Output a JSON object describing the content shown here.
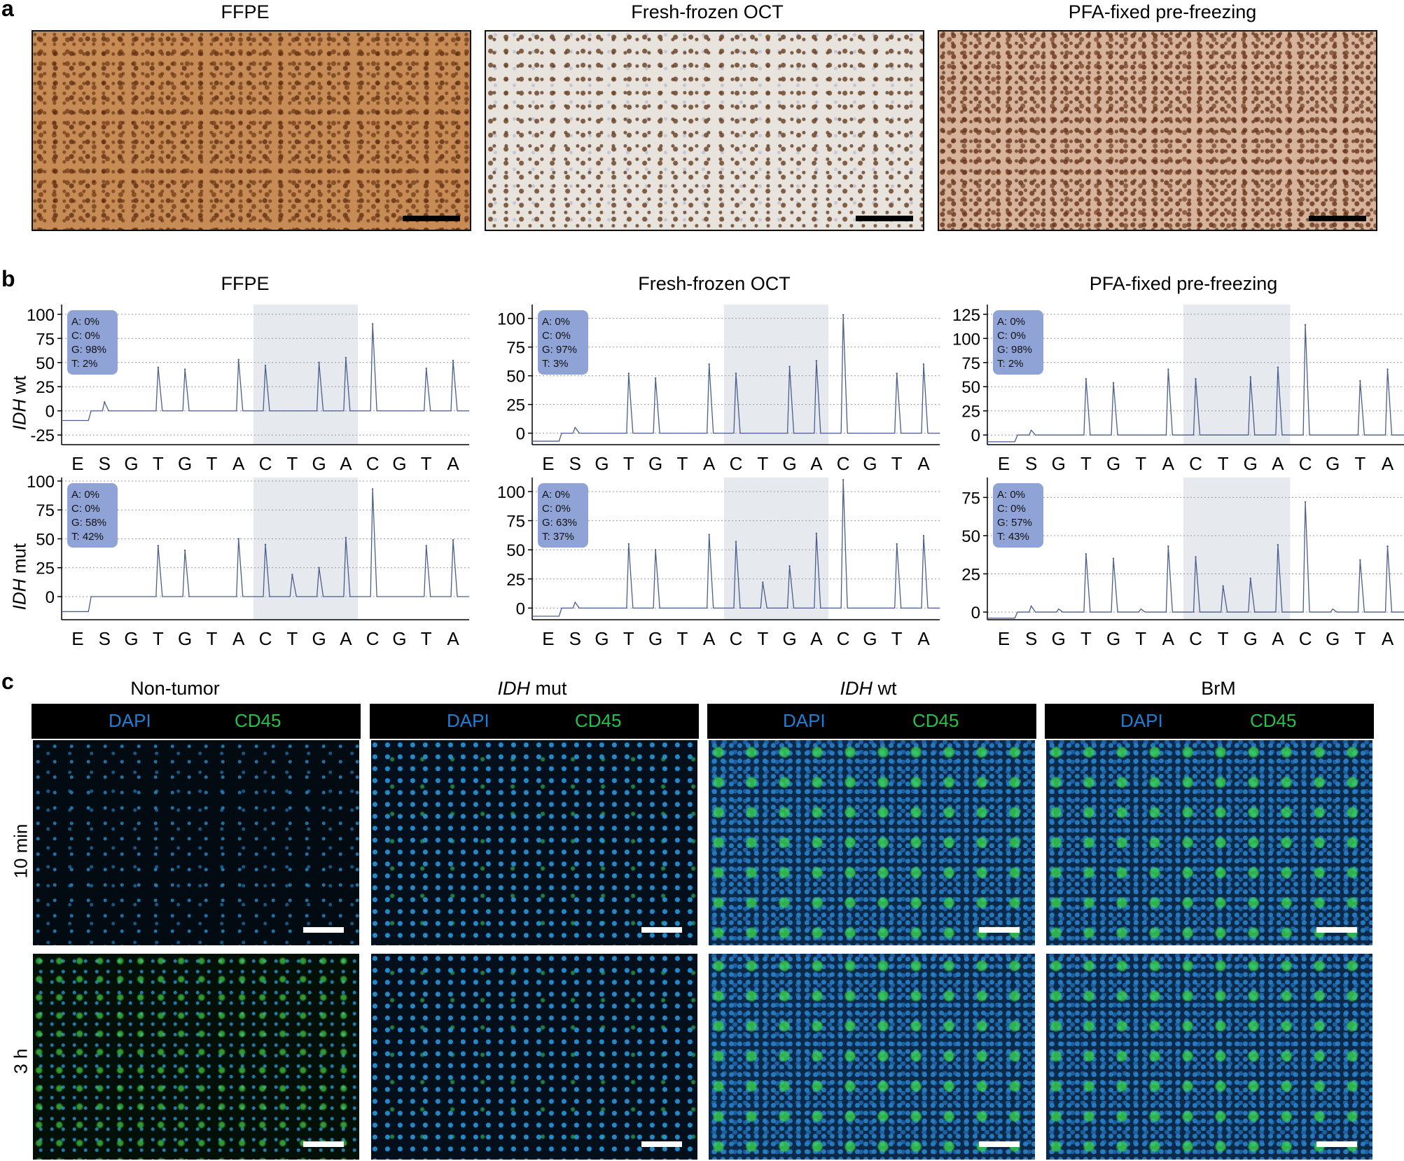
{
  "panel_a": {
    "letter": "a",
    "titles": [
      "FFPE",
      "Fresh-frozen OCT",
      "PFA-fixed pre-freezing"
    ]
  },
  "panel_b": {
    "letter": "b",
    "titles": [
      "FFPE",
      "Fresh-frozen OCT",
      "PFA-fixed pre-freezing"
    ],
    "row_labels": [
      {
        "italic": "IDH",
        "plain": " wt"
      },
      {
        "italic": "IDH",
        "plain": " mut"
      }
    ],
    "x_letters": [
      "E",
      "S",
      "G",
      "T",
      "G",
      "T",
      "A",
      "C",
      "T",
      "G",
      "A",
      "C",
      "G",
      "T",
      "A"
    ]
  },
  "chart_data": [
    {
      "type": "line",
      "title": "FFPE",
      "row": "IDH wt",
      "yticks": [
        -25,
        0,
        25,
        50,
        75,
        100
      ],
      "ylim": [
        -35,
        110
      ],
      "legend": [
        "A: 0%",
        "C: 0%",
        "G: 98%",
        "T: 2%"
      ],
      "x": [
        "E",
        "S",
        "G",
        "T",
        "G",
        "T",
        "A",
        "C",
        "T",
        "G",
        "A",
        "C",
        "G",
        "T",
        "A"
      ],
      "peaks": [
        -10,
        9,
        0,
        45,
        43,
        0,
        53,
        47,
        0,
        50,
        55,
        90,
        0,
        44,
        52
      ],
      "highlight": [
        7,
        10
      ]
    },
    {
      "type": "line",
      "title": "Fresh-frozen OCT",
      "row": "IDH wt",
      "yticks": [
        0,
        25,
        50,
        75,
        100
      ],
      "ylim": [
        -10,
        112
      ],
      "legend": [
        "A: 0%",
        "C: 0%",
        "G: 97%",
        "T: 3%"
      ],
      "x": [
        "E",
        "S",
        "G",
        "T",
        "G",
        "T",
        "A",
        "C",
        "T",
        "G",
        "A",
        "C",
        "G",
        "T",
        "A"
      ],
      "peaks": [
        -7,
        5,
        0,
        52,
        48,
        0,
        60,
        52,
        0,
        58,
        63,
        103,
        0,
        52,
        60
      ],
      "highlight": [
        7,
        10
      ]
    },
    {
      "type": "line",
      "title": "PFA-fixed pre-freezing",
      "row": "IDH wt",
      "yticks": [
        0,
        25,
        50,
        75,
        100,
        125
      ],
      "ylim": [
        -10,
        135
      ],
      "legend": [
        "A: 0%",
        "C: 0%",
        "G: 98%",
        "T: 2%"
      ],
      "x": [
        "E",
        "S",
        "G",
        "T",
        "G",
        "T",
        "A",
        "C",
        "T",
        "G",
        "A",
        "C",
        "G",
        "T",
        "A"
      ],
      "peaks": [
        -7,
        5,
        0,
        58,
        54,
        0,
        68,
        58,
        0,
        60,
        70,
        114,
        0,
        56,
        68
      ],
      "highlight": [
        7,
        10
      ]
    },
    {
      "type": "line",
      "title": "FFPE",
      "row": "IDH mut",
      "yticks": [
        0,
        25,
        50,
        75,
        100
      ],
      "ylim": [
        -20,
        103
      ],
      "legend": [
        "A: 0%",
        "C: 0%",
        "G: 58%",
        "T: 42%"
      ],
      "x": [
        "E",
        "S",
        "G",
        "T",
        "G",
        "T",
        "A",
        "C",
        "T",
        "G",
        "A",
        "C",
        "G",
        "T",
        "A"
      ],
      "peaks": [
        -13,
        -2,
        0,
        44,
        40,
        0,
        50,
        45,
        19,
        25,
        51,
        93,
        0,
        44,
        49
      ],
      "highlight": [
        7,
        10
      ]
    },
    {
      "type": "line",
      "title": "Fresh-frozen OCT",
      "row": "IDH mut",
      "yticks": [
        0,
        25,
        50,
        75,
        100
      ],
      "ylim": [
        -10,
        112
      ],
      "legend": [
        "A: 0%",
        "C: 0%",
        "G: 63%",
        "T: 37%"
      ],
      "x": [
        "E",
        "S",
        "G",
        "T",
        "G",
        "T",
        "A",
        "C",
        "T",
        "G",
        "A",
        "C",
        "G",
        "T",
        "A"
      ],
      "peaks": [
        -7,
        5,
        0,
        55,
        50,
        0,
        63,
        57,
        22,
        36,
        64,
        110,
        0,
        55,
        62
      ],
      "highlight": [
        7,
        10
      ]
    },
    {
      "type": "line",
      "title": "PFA-fixed pre-freezing",
      "row": "IDH mut",
      "yticks": [
        0,
        25,
        50,
        75
      ],
      "ylim": [
        -5,
        88
      ],
      "legend": [
        "A: 0%",
        "C: 0%",
        "G: 57%",
        "T: 43%"
      ],
      "x": [
        "E",
        "S",
        "G",
        "T",
        "G",
        "T",
        "A",
        "C",
        "T",
        "G",
        "A",
        "C",
        "G",
        "T",
        "A"
      ],
      "peaks": [
        -4,
        4,
        2,
        38,
        35,
        2,
        43,
        36,
        17,
        22,
        44,
        72,
        2,
        34,
        43
      ],
      "highlight": [
        7,
        10
      ]
    }
  ],
  "panel_c": {
    "letter": "c",
    "col_titles": [
      {
        "italic": "",
        "plain": "Non-tumor"
      },
      {
        "italic": "IDH",
        "plain": " mut"
      },
      {
        "italic": "IDH",
        "plain": " wt"
      },
      {
        "italic": "",
        "plain": "BrM"
      }
    ],
    "stain_left": "DAPI",
    "stain_right": "CD45",
    "row_labels": [
      "10 min",
      "3 h"
    ],
    "colors": {
      "dapi": "#1e7fd6",
      "cd45": "#25c24a"
    }
  }
}
